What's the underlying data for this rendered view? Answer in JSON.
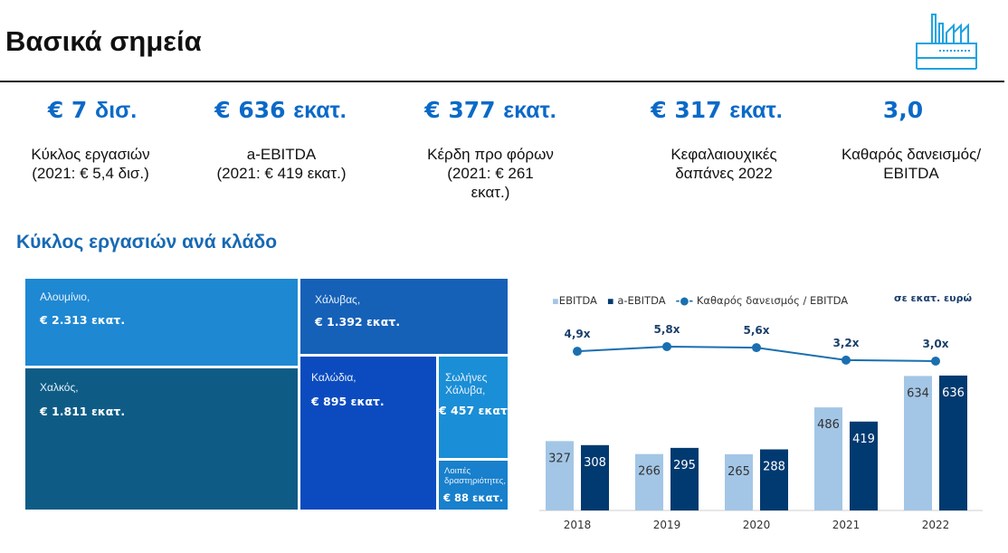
{
  "header": {
    "title": "Βασικά σημεία",
    "icon": "factory-icon"
  },
  "kpis": [
    {
      "value": "€ 7",
      "unit": "δισ.",
      "label_lines": [
        "Κύκλος εργασιών",
        "(2021: € 5,4 δισ.)"
      ]
    },
    {
      "value": "€ 636",
      "unit": "εκατ.",
      "label_lines": [
        "a-EBITDA",
        "(2021: € 419 εκατ.)"
      ]
    },
    {
      "value": "€ 377",
      "unit": "εκατ.",
      "label_lines": [
        "Κέρδη προ φόρων",
        "(2021: € 261",
        "εκατ.)"
      ]
    },
    {
      "value": "€ 317",
      "unit": "εκατ.",
      "label_lines": [
        "Κεφαλαιουχικές",
        "δαπάνες 2022"
      ]
    },
    {
      "value": "3,0",
      "unit": "",
      "label_lines": [
        "Καθαρός δανεισμός/",
        "EBITDA"
      ]
    }
  ],
  "segments": {
    "title": "Κύκλος εργασιών ανά κλάδο",
    "tiles": [
      {
        "name_lines": [
          "Αλουμίνιο,"
        ],
        "value": "€ 2.313 εκατ.",
        "color": "#1e88d3"
      },
      {
        "name_lines": [
          "Χαλκός,"
        ],
        "value": "€ 1.811 εκατ.",
        "color": "#0e5c86"
      },
      {
        "name_lines": [
          "Χάλυβας,"
        ],
        "value": "€ 1.392 εκατ.",
        "color": "#1561b8"
      },
      {
        "name_lines": [
          "Καλώδια,"
        ],
        "value": "€ 895 εκατ.",
        "color": "#0b4bbf"
      },
      {
        "name_lines": [
          "Σωλήνες",
          "Χάλυβα,"
        ],
        "value": "€ 457 εκατ.",
        "color": "#1a8ed6"
      },
      {
        "name_lines": [
          "Λοιπές",
          "δραστηριότητες,"
        ],
        "value": "€ 88 εκατ.",
        "color": "#1880cc"
      }
    ]
  },
  "chart_data": {
    "type": "bar",
    "categories": [
      "2018",
      "2019",
      "2020",
      "2021",
      "2022"
    ],
    "series": [
      {
        "name": "EBITDA",
        "values": [
          327,
          266,
          265,
          486,
          634
        ],
        "color": "#a3c6e6"
      },
      {
        "name": "a-EBITDA",
        "values": [
          308,
          295,
          288,
          419,
          636
        ],
        "color": "#003a70"
      }
    ],
    "line_series": {
      "name": "Καθαρός δανεισμός / EBITDA",
      "values": [
        4.9,
        5.8,
        5.6,
        3.2,
        3.0
      ],
      "labels": [
        "4,9x",
        "5,8x",
        "5,6x",
        "3,2x",
        "3,0x"
      ],
      "color": "#1a6fb0"
    },
    "units_note": "σε εκατ. ευρώ",
    "legend_position": "top-left",
    "grid": false
  }
}
